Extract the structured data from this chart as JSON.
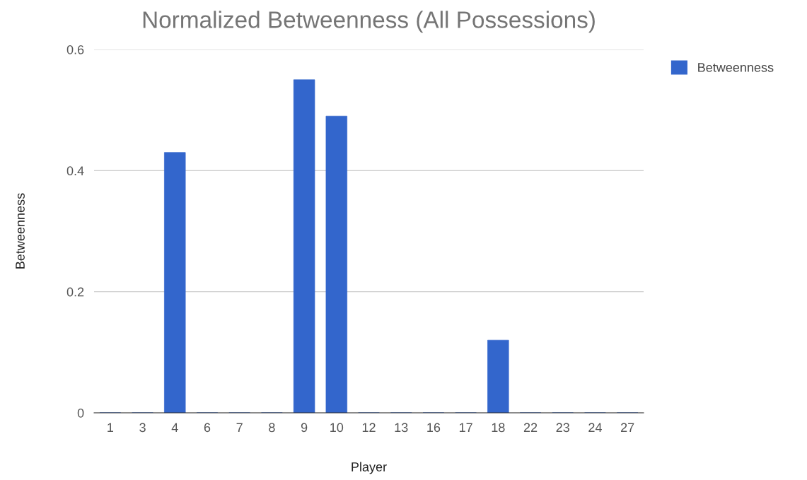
{
  "chart_data": {
    "type": "bar",
    "title": "Normalized Betweenness (All Possessions)",
    "xlabel": "Player",
    "ylabel": "Betweenness",
    "categories": [
      "1",
      "3",
      "4",
      "6",
      "7",
      "8",
      "9",
      "10",
      "12",
      "13",
      "16",
      "17",
      "18",
      "22",
      "23",
      "24",
      "27"
    ],
    "series": [
      {
        "name": "Betweenness",
        "color": "#3366cc",
        "values": [
          0,
          0,
          0.43,
          0,
          0,
          0,
          0.55,
          0.49,
          0,
          0,
          0,
          0,
          0.12,
          0,
          0,
          0,
          0
        ]
      }
    ],
    "ylim": [
      0,
      0.6
    ],
    "yticks": [
      0,
      0.2,
      0.4,
      0.6
    ],
    "grid": "y",
    "legend": "top right"
  }
}
